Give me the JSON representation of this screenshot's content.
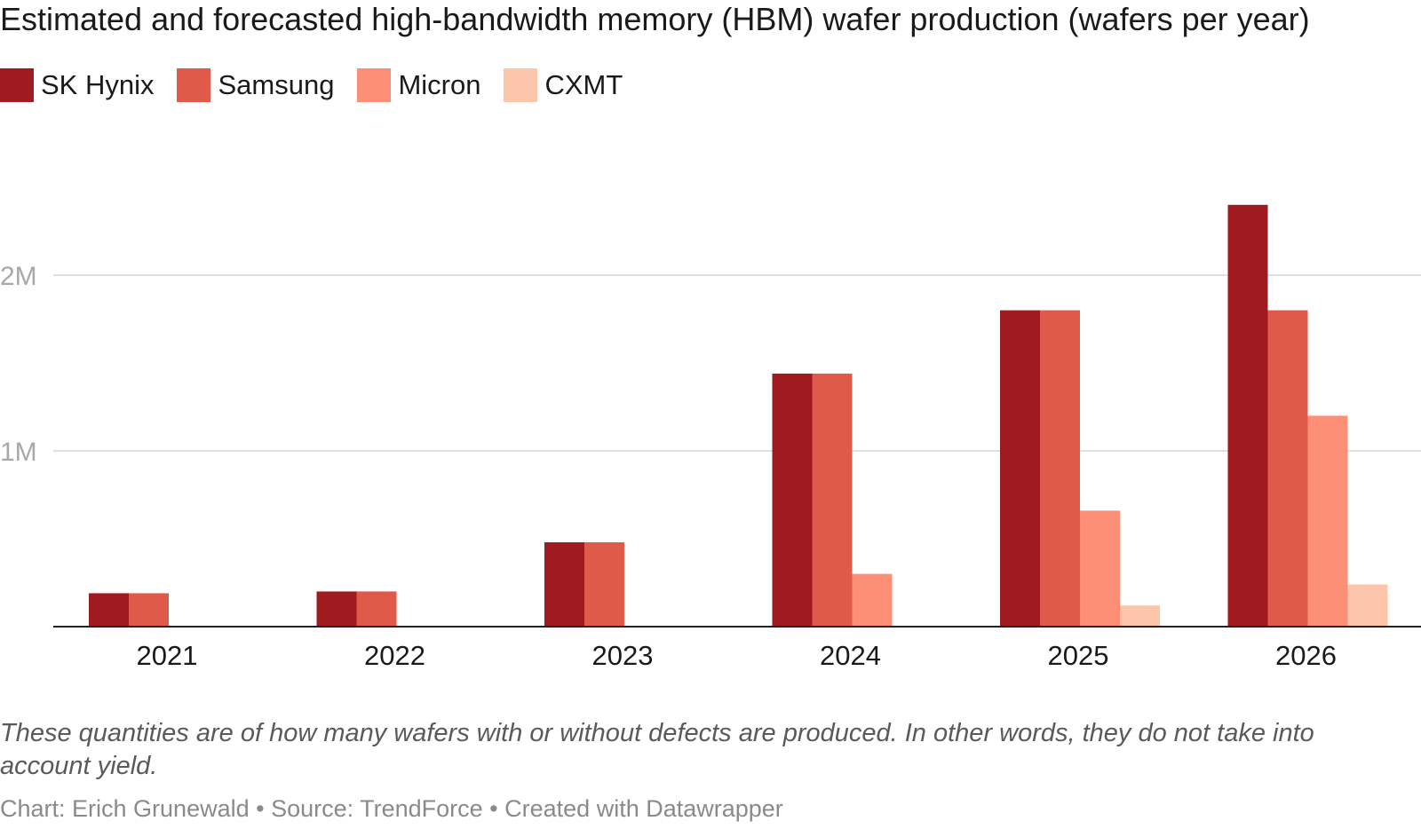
{
  "chart_data": {
    "type": "bar",
    "title": "Estimated and forecasted high-bandwidth memory (HBM) wafer production (wafers per year)",
    "categories": [
      "2021",
      "2022",
      "2023",
      "2024",
      "2025",
      "2026"
    ],
    "series": [
      {
        "name": "SK Hynix",
        "color": "#a01b1f",
        "values": [
          190000,
          200000,
          480000,
          1440000,
          1800000,
          2400000
        ]
      },
      {
        "name": "Samsung",
        "color": "#e05a4a",
        "values": [
          190000,
          200000,
          480000,
          1440000,
          1800000,
          1800000
        ]
      },
      {
        "name": "Micron",
        "color": "#fd8f77",
        "values": [
          0,
          0,
          0,
          300000,
          660000,
          1200000
        ]
      },
      {
        "name": "CXMT",
        "color": "#fdc5a9",
        "values": [
          0,
          0,
          0,
          0,
          120000,
          240000
        ]
      }
    ],
    "yticks": [
      {
        "value": 1000000,
        "label": "1M"
      },
      {
        "value": 2000000,
        "label": "2M"
      }
    ],
    "ylim": [
      0,
      2500000
    ],
    "xlabel": "",
    "ylabel": "",
    "grid": true,
    "legend": "top-left"
  },
  "note": "These quantities are of how many wafers with or without defects are produced. In other words, they do not take into account yield.",
  "footer": "Chart: Erich Grunewald • Source: TrendForce • Created with Datawrapper"
}
